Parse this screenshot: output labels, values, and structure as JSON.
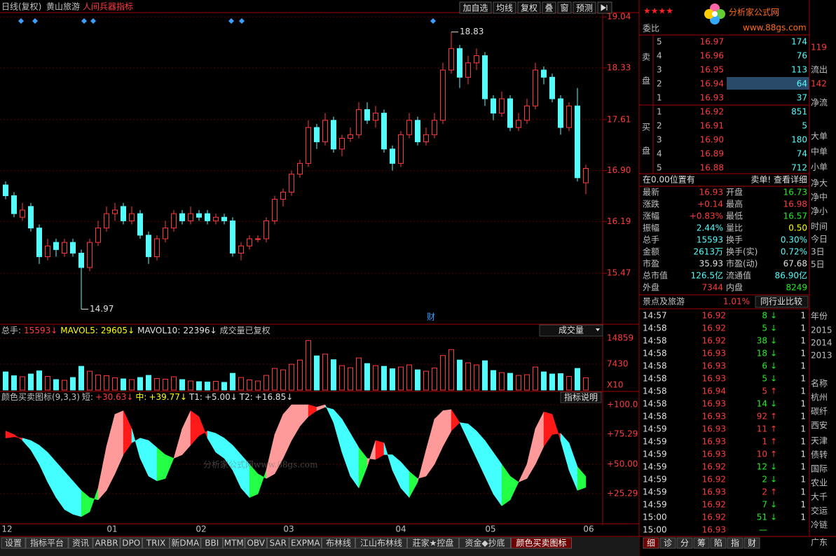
{
  "toolbar": {
    "period": "日线(复权)",
    "stock": "黄山旅游",
    "indicator": "人间兵器指标",
    "buttons": [
      "加自选",
      "均线",
      "复权",
      "叠",
      "窗",
      "预测"
    ]
  },
  "price_chart": {
    "type": "candlestick",
    "ylim": [
      14.77,
      19.1
    ],
    "yticks": [
      19.04,
      18.33,
      17.61,
      {
        "value": 16.9,
        "label": "16.90"
      },
      16.19,
      15.47
    ],
    "high_label": 18.83,
    "low_label": 14.97,
    "marker": "财",
    "candles": [
      [
        16.7,
        16.75,
        16.5,
        16.55
      ],
      [
        16.55,
        16.6,
        16.25,
        16.3
      ],
      [
        16.25,
        16.45,
        16.2,
        16.35
      ],
      [
        16.4,
        16.45,
        16.05,
        16.1
      ],
      [
        16.1,
        16.15,
        15.6,
        15.7
      ],
      [
        15.7,
        15.95,
        15.65,
        15.85
      ],
      [
        15.9,
        15.95,
        15.7,
        15.8
      ],
      [
        15.75,
        15.95,
        15.7,
        15.9
      ],
      [
        15.9,
        15.95,
        15.7,
        15.75
      ],
      [
        15.75,
        15.8,
        14.97,
        15.55
      ],
      [
        15.55,
        15.95,
        15.5,
        15.9
      ],
      [
        15.9,
        16.2,
        15.85,
        16.1
      ],
      [
        16.1,
        16.4,
        16.05,
        16.3
      ],
      [
        16.3,
        16.45,
        16.2,
        16.35
      ],
      [
        16.4,
        16.45,
        16.15,
        16.2
      ],
      [
        16.2,
        16.4,
        16.15,
        16.3
      ],
      [
        16.3,
        16.35,
        15.95,
        16.0
      ],
      [
        16.0,
        16.05,
        15.6,
        15.7
      ],
      [
        15.7,
        16.0,
        15.65,
        15.95
      ],
      [
        15.95,
        16.2,
        15.9,
        16.1
      ],
      [
        16.1,
        16.35,
        16.05,
        16.3
      ],
      [
        16.3,
        16.35,
        16.15,
        16.2
      ],
      [
        16.2,
        16.4,
        16.15,
        16.3
      ],
      [
        16.3,
        16.35,
        16.2,
        16.25
      ],
      [
        16.3,
        16.35,
        16.15,
        16.2
      ],
      [
        16.2,
        16.3,
        16.15,
        16.25
      ],
      [
        16.25,
        16.3,
        16.15,
        16.2
      ],
      [
        16.2,
        16.25,
        15.7,
        15.75
      ],
      [
        15.75,
        15.9,
        15.65,
        15.85
      ],
      [
        15.85,
        16.0,
        15.8,
        15.95
      ],
      [
        15.95,
        16.0,
        15.9,
        15.95
      ],
      [
        15.95,
        16.25,
        15.9,
        16.2
      ],
      [
        16.2,
        16.55,
        16.15,
        16.5
      ],
      [
        16.5,
        16.65,
        16.4,
        16.6
      ],
      [
        16.6,
        16.9,
        16.55,
        16.85
      ],
      [
        16.85,
        17.05,
        16.8,
        17.0
      ],
      [
        17.0,
        17.6,
        16.95,
        17.5
      ],
      [
        17.5,
        17.55,
        17.2,
        17.3
      ],
      [
        17.3,
        17.7,
        17.25,
        17.6
      ],
      [
        17.6,
        17.65,
        17.15,
        17.2
      ],
      [
        17.2,
        17.4,
        17.1,
        17.35
      ],
      [
        17.35,
        17.5,
        17.3,
        17.4
      ],
      [
        17.4,
        17.85,
        17.35,
        17.75
      ],
      [
        17.75,
        17.85,
        17.55,
        17.6
      ],
      [
        17.6,
        17.8,
        17.5,
        17.7
      ],
      [
        17.7,
        17.75,
        17.15,
        17.2
      ],
      [
        17.2,
        17.25,
        16.9,
        17.0
      ],
      [
        17.0,
        17.45,
        16.95,
        17.4
      ],
      [
        17.4,
        17.7,
        17.35,
        17.6
      ],
      [
        17.6,
        17.65,
        17.25,
        17.3
      ],
      [
        17.3,
        17.5,
        17.25,
        17.4
      ],
      [
        17.4,
        17.7,
        17.35,
        17.6
      ],
      [
        17.6,
        18.4,
        17.55,
        18.3
      ],
      [
        18.3,
        18.83,
        18.25,
        18.6
      ],
      [
        18.6,
        18.65,
        18.05,
        18.2
      ],
      [
        18.2,
        18.5,
        18.1,
        18.4
      ],
      [
        18.4,
        18.6,
        18.3,
        18.5
      ],
      [
        18.5,
        18.55,
        17.8,
        17.9
      ],
      [
        17.9,
        17.95,
        17.6,
        17.7
      ],
      [
        17.7,
        18.0,
        17.65,
        17.9
      ],
      [
        17.9,
        17.95,
        17.45,
        17.5
      ],
      [
        17.5,
        17.7,
        17.45,
        17.6
      ],
      [
        17.6,
        17.9,
        17.55,
        17.8
      ],
      [
        17.8,
        18.4,
        17.75,
        18.3
      ],
      [
        18.3,
        18.35,
        18.1,
        18.2
      ],
      [
        18.2,
        18.25,
        17.85,
        17.9
      ],
      [
        17.9,
        17.95,
        17.4,
        17.5
      ],
      [
        17.5,
        17.85,
        17.45,
        17.8
      ],
      [
        17.8,
        18.05,
        16.75,
        16.8
      ],
      [
        16.73,
        16.98,
        16.57,
        16.93
      ]
    ]
  },
  "volume_chart": {
    "type": "bar",
    "legend": [
      "总手:",
      "15593↓",
      "MAVOL5:",
      "29605↓",
      "MAVOL10:",
      "22396↓",
      "成交量已复权"
    ],
    "selector": "成交量",
    "unit": "X10",
    "ylim": [
      0,
      15863
    ],
    "yticks": [
      14859,
      7430
    ],
    "values": [
      5200,
      4100,
      3800,
      4600,
      5500,
      3900,
      3000,
      2800,
      3600,
      6800,
      5400,
      4300,
      4100,
      3500,
      3200,
      3000,
      3600,
      4200,
      3300,
      3100,
      3800,
      3000,
      2600,
      2400,
      2300,
      2500,
      2200,
      4800,
      3600,
      2900,
      2600,
      4200,
      6200,
      5800,
      7400,
      8600,
      14200,
      9800,
      10300,
      8700,
      7000,
      6400,
      9200,
      7600,
      7000,
      6800,
      6100,
      6600,
      7200,
      5800,
      5400,
      6300,
      9900,
      11600,
      8600,
      7800,
      7200,
      8400,
      5600,
      5000,
      4800,
      4200,
      4400,
      6600,
      5200,
      4600,
      4700,
      3900,
      6200,
      3500
    ]
  },
  "indicator_chart": {
    "type": "band",
    "legend": [
      "颜色买卖图标(9,3,3)",
      "短:",
      "+30.63↓",
      "中:",
      "+39.77↓",
      "T1:",
      "+5.00↓",
      "T2:",
      "+16.85↓"
    ],
    "button": "指标说明",
    "ylim": [
      0,
      104.7
    ],
    "yticks": [
      {
        "value": 100,
        "label": "+100.0"
      },
      {
        "value": 75.29,
        "label": "+75.29"
      },
      {
        "value": 50,
        "label": "+50.00"
      },
      {
        "value": 25.29,
        "label": "+25.29"
      }
    ],
    "short": [
      78,
      75,
      70,
      62,
      50,
      35,
      22,
      12,
      8,
      6,
      10,
      30,
      65,
      92,
      95,
      80,
      55,
      40,
      36,
      38,
      55,
      80,
      95,
      90,
      72,
      60,
      55,
      45,
      30,
      22,
      25,
      45,
      75,
      92,
      100,
      100,
      100,
      98,
      100,
      85,
      60,
      40,
      30,
      48,
      70,
      68,
      45,
      30,
      22,
      35,
      62,
      88,
      95,
      96,
      85,
      70,
      55,
      40,
      25,
      15,
      20,
      35,
      50,
      80,
      94,
      92,
      70,
      45,
      28,
      30.63
    ],
    "mid": [
      72,
      73,
      72,
      70,
      66,
      60,
      52,
      44,
      36,
      28,
      22,
      20,
      28,
      42,
      58,
      68,
      72,
      70,
      64,
      58,
      55,
      58,
      66,
      74,
      78,
      76,
      72,
      66,
      58,
      50,
      42,
      38,
      42,
      55,
      70,
      82,
      90,
      95,
      98,
      96,
      88,
      76,
      64,
      55,
      54,
      58,
      58,
      52,
      44,
      38,
      40,
      50,
      65,
      78,
      85,
      84,
      78,
      70,
      60,
      50,
      40,
      35,
      38,
      50,
      65,
      75,
      76,
      68,
      48,
      39.77
    ],
    "watermark": "分析家公式网www.88gs.com",
    "date_labels": [
      "12",
      "01",
      "02",
      "03",
      "04",
      "05",
      "06"
    ]
  },
  "logo": {
    "name": "分析家公式网",
    "url": "www.88gs.com",
    "stars": "★★★★"
  },
  "order_book": {
    "ratio_label": "委比",
    "sell_label": [
      "卖",
      "盘"
    ],
    "buy_label": [
      "买",
      "盘"
    ],
    "sell": [
      [
        "5",
        "16.97",
        "174"
      ],
      [
        "4",
        "16.96",
        "76"
      ],
      [
        "3",
        "16.95",
        "113"
      ],
      [
        "2",
        "16.94",
        "64"
      ],
      [
        "1",
        "16.93",
        "37"
      ]
    ],
    "buy": [
      [
        "1",
        "16.92",
        "851"
      ],
      [
        "2",
        "16.91",
        "5"
      ],
      [
        "3",
        "16.90",
        "180"
      ],
      [
        "4",
        "16.89",
        "74"
      ],
      [
        "5",
        "16.88",
        "712"
      ]
    ],
    "notice": "在0.00位置有",
    "notice_link": "卖单! 查看详细"
  },
  "quote": [
    [
      "最新",
      "16.93",
      "开盘",
      "16.73"
    ],
    [
      "涨跌",
      "+0.14",
      "最高",
      "16.98"
    ],
    [
      "涨幅",
      "+0.83%",
      "最低",
      "16.57"
    ],
    [
      "振幅",
      "2.44%",
      "量比",
      "0.50"
    ],
    [
      "总手",
      "15593",
      "换手",
      "0.30%"
    ],
    [
      "金额",
      "2613万",
      "换手(实)",
      "0.72%"
    ],
    [
      "市盈",
      "35.93",
      "市盈(动)",
      "67.68"
    ],
    [
      "总市值",
      "126.5亿",
      "流通值",
      "86.90亿"
    ],
    [
      "外盘",
      "7344",
      "内盘",
      "8249"
    ]
  ],
  "industry": {
    "name": "景点及旅游",
    "change": "1.01%",
    "button": "同行业比较"
  },
  "trades": [
    [
      "14:57",
      "16.92",
      "8",
      "↓",
      "1"
    ],
    [
      "14:58",
      "16.92",
      "5",
      "↓",
      "1"
    ],
    [
      "14:58",
      "16.92",
      "38",
      "↓",
      "1"
    ],
    [
      "14:58",
      "16.93",
      "18",
      "↓",
      "1"
    ],
    [
      "14:58",
      "16.93",
      "6",
      "↓",
      "1"
    ],
    [
      "14:58",
      "16.93",
      "5",
      "↓",
      "1"
    ],
    [
      "14:58",
      "16.94",
      "5",
      "↑",
      "1"
    ],
    [
      "14:58",
      "16.93",
      "14",
      "↓",
      "1"
    ],
    [
      "14:58",
      "16.93",
      "92",
      "↑",
      "1"
    ],
    [
      "14:59",
      "16.93",
      "11",
      "↑",
      "1"
    ],
    [
      "14:59",
      "16.93",
      "1",
      "↑",
      "1"
    ],
    [
      "14:59",
      "16.93",
      "10",
      "↑",
      "1"
    ],
    [
      "14:59",
      "16.92",
      "12",
      "↓",
      "1"
    ],
    [
      "14:59",
      "16.92",
      "2",
      "↓",
      "1"
    ],
    [
      "14:59",
      "16.93",
      "2",
      "↑",
      "1"
    ],
    [
      "14:59",
      "16.92",
      "7",
      "↓",
      "1"
    ],
    [
      "15:00",
      "16.92",
      "51",
      "↓",
      "1"
    ],
    [
      "15:00",
      "16.93",
      "—",
      "",
      ""
    ]
  ],
  "side_strip": [
    "119",
    "流出",
    "142",
    "净流",
    "大单",
    "中单",
    "小单",
    "净大",
    "净中",
    "净小",
    "时间",
    "今日",
    "3日",
    "5日",
    "年份",
    "2015",
    "2014",
    "2013",
    "名称",
    "杭州",
    "碳纤",
    "西安",
    "天津",
    "债转",
    "国际",
    "农业",
    "大千",
    "交运",
    "冷链",
    "广东"
  ],
  "tabs": [
    "设置",
    "指标平台",
    "资讯",
    "ARBR",
    "DPO",
    "TRIX",
    "新DMA",
    "BBI",
    "MTM",
    "OBV",
    "SAR",
    "EXPMA",
    "布林线",
    "江山布林线",
    "莊家★控盘",
    "资金◆抄底",
    "颜色买卖图标"
  ],
  "active_tab": 16,
  "side_tabs": [
    "细",
    "诊",
    "分",
    "筹",
    "陷",
    "指",
    "财"
  ]
}
